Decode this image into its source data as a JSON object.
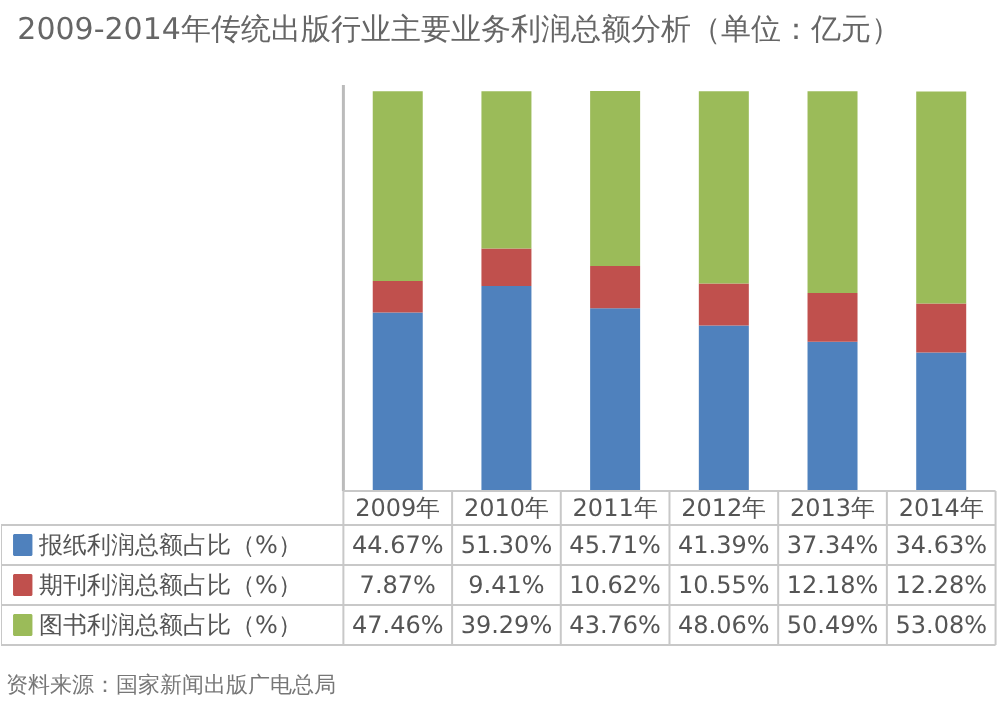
{
  "chart_data": {
    "type": "bar",
    "stacked": true,
    "title": "2009-2014年传统出版行业主要业务利润总额分析（单位：亿元）",
    "categories": [
      "2009年",
      "2010年",
      "2011年",
      "2012年",
      "2013年",
      "2014年"
    ],
    "series": [
      {
        "name": "报纸利润总额占比（%）",
        "color": "#4f81bd",
        "values": [
          44.67,
          51.3,
          45.71,
          41.39,
          37.34,
          34.63
        ],
        "value_labels": [
          "44.67%",
          "51.30%",
          "45.71%",
          "41.39%",
          "37.34%",
          "34.63%"
        ]
      },
      {
        "name": "期刊利润总额占比（%）",
        "color": "#c0504d",
        "values": [
          7.87,
          9.41,
          10.62,
          10.55,
          12.18,
          12.28
        ],
        "value_labels": [
          "7.87%",
          "9.41%",
          "10.62%",
          "10.55%",
          "12.18%",
          "12.28%"
        ]
      },
      {
        "name": "图书利润总额占比（%）",
        "color": "#9bbb59",
        "values": [
          47.46,
          39.29,
          43.76,
          48.06,
          50.49,
          53.08
        ],
        "value_labels": [
          "47.46%",
          "39.29%",
          "43.76%",
          "48.06%",
          "50.49%",
          "53.08%"
        ]
      }
    ],
    "legend": "bottom left",
    "annotations": [
      "资料来源：国家新闻出版广电总局"
    ]
  }
}
